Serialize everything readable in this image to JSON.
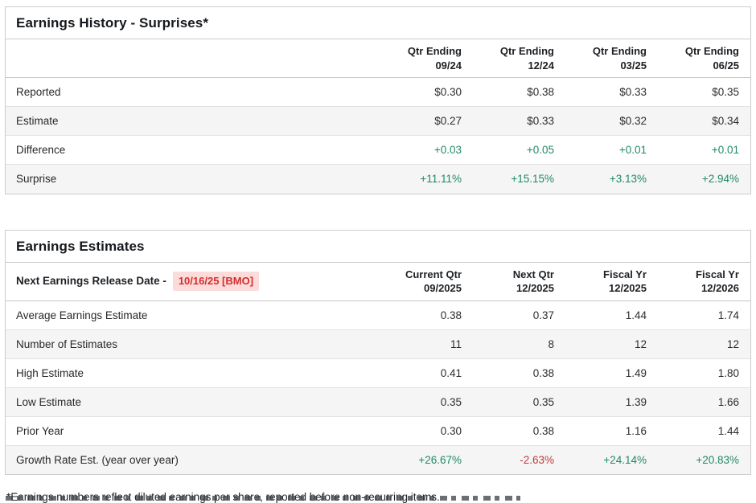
{
  "history": {
    "title": "Earnings History - Surprises*",
    "columns": [
      {
        "line1": "Qtr Ending",
        "line2": "09/24"
      },
      {
        "line1": "Qtr Ending",
        "line2": "12/24"
      },
      {
        "line1": "Qtr Ending",
        "line2": "03/25"
      },
      {
        "line1": "Qtr Ending",
        "line2": "06/25"
      }
    ],
    "rows": [
      {
        "label": "Reported",
        "values": [
          "$0.30",
          "$0.38",
          "$0.33",
          "$0.35"
        ]
      },
      {
        "label": "Estimate",
        "values": [
          "$0.27",
          "$0.33",
          "$0.32",
          "$0.34"
        ]
      },
      {
        "label": "Difference",
        "values": [
          "+0.03",
          "+0.05",
          "+0.01",
          "+0.01"
        ]
      },
      {
        "label": "Surprise",
        "values": [
          "+11.11%",
          "+15.15%",
          "+3.13%",
          "+2.94%"
        ]
      }
    ]
  },
  "estimates": {
    "title": "Earnings Estimates",
    "release_label": "Next Earnings Release Date -",
    "release_date": "10/16/25 [BMO]",
    "columns": [
      {
        "line1": "Current Qtr",
        "line2": "09/2025"
      },
      {
        "line1": "Next Qtr",
        "line2": "12/2025"
      },
      {
        "line1": "Fiscal Yr",
        "line2": "12/2025"
      },
      {
        "line1": "Fiscal Yr",
        "line2": "12/2026"
      }
    ],
    "rows": [
      {
        "label": "Average Earnings Estimate",
        "values": [
          "0.38",
          "0.37",
          "1.44",
          "1.74"
        ]
      },
      {
        "label": "Number of Estimates",
        "values": [
          "11",
          "8",
          "12",
          "12"
        ]
      },
      {
        "label": "High Estimate",
        "values": [
          "0.41",
          "0.38",
          "1.49",
          "1.80"
        ]
      },
      {
        "label": "Low Estimate",
        "values": [
          "0.35",
          "0.35",
          "1.39",
          "1.66"
        ]
      },
      {
        "label": "Prior Year",
        "values": [
          "0.30",
          "0.38",
          "1.16",
          "1.44"
        ]
      },
      {
        "label": "Growth Rate Est. (year over year)",
        "values": [
          "+26.67%",
          "-2.63%",
          "+24.14%",
          "+20.83%"
        ]
      }
    ]
  },
  "footnote": "*Earnings numbers reflect diluted earnings per share, reported before non-recurring items.",
  "colors": {
    "positive": "#208a66",
    "negative": "#c23b3b",
    "release_badge_bg": "#fbdcda",
    "release_badge_text": "#d42e2e",
    "alt_row_bg": "#f5f5f5"
  }
}
